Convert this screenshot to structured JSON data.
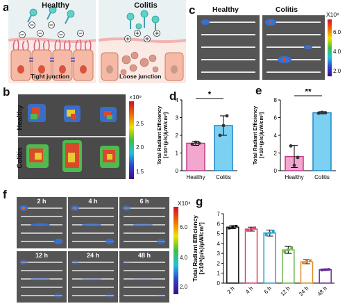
{
  "panel_labels": {
    "a": "a",
    "b": "b",
    "c": "c",
    "d": "d",
    "e": "e",
    "f": "f",
    "g": "g"
  },
  "panel_a": {
    "healthy_title": "Healthy",
    "colitis_title": "Colitis",
    "tight_label": "Tight junction",
    "loose_label": "Loose junction"
  },
  "panel_b": {
    "row1": "Healthy",
    "row2": "Colitis",
    "scale_exp": "×10⁹",
    "scale_ticks": [
      "2.5",
      "2.0",
      "1.5"
    ]
  },
  "panel_c": {
    "healthy_title": "Healthy",
    "colitis_title": "Colitis",
    "scale_exp": "X10⁸",
    "scale_ticks": [
      "6.0",
      "4.0",
      "2.0"
    ]
  },
  "panel_f": {
    "times": [
      "2 h",
      "4 h",
      "6 h",
      "12 h",
      "24 h",
      "48 h"
    ],
    "scale_exp": "X10⁸",
    "scale_ticks": [
      "6.0",
      "4.0",
      "2.0"
    ]
  },
  "colors": {
    "pink": "#f2a7cf",
    "pink_edge": "#c13b8a",
    "blue": "#7cd0f2",
    "blue_edge": "#1f87c8"
  },
  "chart_data": [
    {
      "panel": "d",
      "type": "bar",
      "categories": [
        "Healthy",
        "Colitis"
      ],
      "values": [
        1.55,
        2.55
      ],
      "errors": [
        0.12,
        0.55
      ],
      "points": [
        [
          1.5,
          1.6,
          1.55
        ],
        [
          2.0,
          2.55,
          3.1
        ]
      ],
      "ylabel_1": "Total Radiant Efficiency",
      "ylabel_2": "[×10⁹(p/s)/μW/cm²]",
      "ylim": [
        0,
        4
      ],
      "yticks": [
        "0",
        "1",
        "2",
        "3",
        "4"
      ],
      "significance": "*"
    },
    {
      "panel": "e",
      "type": "bar",
      "categories": [
        "Healthy",
        "Colitis"
      ],
      "values": [
        1.6,
        6.55
      ],
      "errors": [
        1.25,
        0.12
      ],
      "points": [
        [
          2.8,
          0.6,
          1.5
        ],
        [
          6.5,
          6.6,
          6.55
        ]
      ],
      "ylabel_1": "Total Radiant Efficiency",
      "ylabel_2": "[×10⁸(p/s)/μW/cm²]",
      "ylim": [
        0,
        8
      ],
      "yticks": [
        "0",
        "2",
        "4",
        "6",
        "8"
      ],
      "significance": "**"
    },
    {
      "panel": "g",
      "type": "bar",
      "categories": [
        "2 h",
        "4 h",
        "6 h",
        "12 h",
        "24 h",
        "48 h"
      ],
      "values": [
        5.65,
        5.45,
        5.05,
        3.35,
        2.15,
        1.35
      ],
      "errors": [
        0.15,
        0.2,
        0.3,
        0.35,
        0.2,
        0.05
      ],
      "bar_colors": [
        "#111111",
        "#e0406a",
        "#2aa1c9",
        "#6ab04c",
        "#e08a2c",
        "#6a2aa0"
      ],
      "ylabel_1": "Total Radiant Efficiency",
      "ylabel_2": "[×10⁹(p/s)/μW/cm²]",
      "ylim": [
        0,
        7
      ],
      "yticks": [
        "0",
        "1",
        "2",
        "3",
        "4",
        "5",
        "6",
        "7"
      ]
    }
  ]
}
